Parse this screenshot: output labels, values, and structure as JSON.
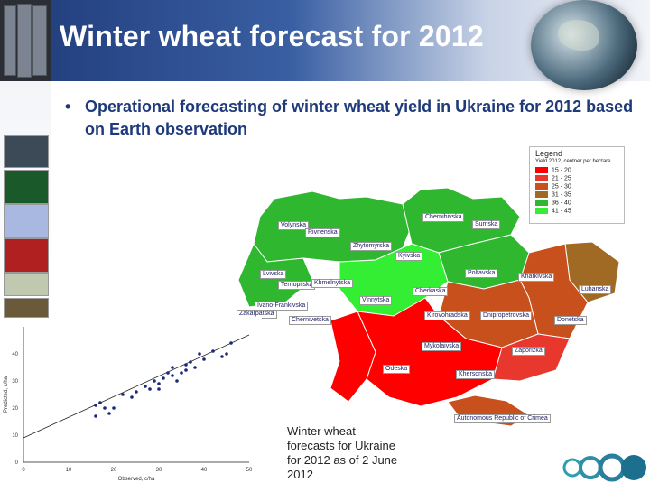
{
  "slide": {
    "title": "Winter wheat forecast for 2012",
    "bullet": "Operational forecasting of winter wheat yield in Ukraine for 2012 based on Earth observation",
    "caption": "Winter wheat forecasts for Ukraine for 2012 as of 2 June 2012"
  },
  "legend": {
    "title": "Legend",
    "subtitle": "Yield 2012, centner per hectare",
    "items": [
      {
        "label": "15 - 20",
        "color": "#ff0000"
      },
      {
        "label": "21 - 25",
        "color": "#e8372d"
      },
      {
        "label": "25 - 30",
        "color": "#c8501c"
      },
      {
        "label": "31 - 35",
        "color": "#a06a24"
      },
      {
        "label": "36 - 40",
        "color": "#2fb82f"
      },
      {
        "label": "41 - 45",
        "color": "#33ee33"
      }
    ]
  },
  "regions": [
    "Volynska",
    "Rivnenska",
    "Zhytomyrska",
    "Kyivska",
    "Chernihivska",
    "Sumska",
    "Lvivska",
    "Ternopilska",
    "Khmelnytska",
    "Poltavska",
    "Kharkivska",
    "Luhanska",
    "Ivano-Frankivska",
    "Zakarpatska",
    "Chernivetska",
    "Vinnytska",
    "Cherkaska",
    "Kirovohradska",
    "Dnipropetrovska",
    "Donetska",
    "Mykolaivska",
    "Zaporizka",
    "Odeska",
    "Khersonska",
    "Autonomous Republic of Crimea"
  ],
  "scatter": {
    "xlabel": "Observed, c/ha",
    "ylabel": "Predicted, c/ha",
    "xticks": [
      "0",
      "10",
      "20",
      "30",
      "40",
      "50"
    ],
    "yticks": [
      "0",
      "10",
      "20",
      "30",
      "40"
    ],
    "xlim": [
      0,
      50
    ],
    "ylim": [
      0,
      50
    ],
    "points": [
      [
        16,
        21
      ],
      [
        17,
        22
      ],
      [
        18,
        20
      ],
      [
        16,
        17
      ],
      [
        19,
        18
      ],
      [
        20,
        20
      ],
      [
        22,
        25
      ],
      [
        24,
        24
      ],
      [
        25,
        26
      ],
      [
        27,
        28
      ],
      [
        28,
        27
      ],
      [
        29,
        30
      ],
      [
        30,
        29
      ],
      [
        31,
        31
      ],
      [
        32,
        33
      ],
      [
        33,
        32
      ],
      [
        34,
        30
      ],
      [
        35,
        33
      ],
      [
        36,
        36
      ],
      [
        37,
        37
      ],
      [
        38,
        35
      ],
      [
        39,
        40
      ],
      [
        40,
        38
      ],
      [
        42,
        41
      ],
      [
        44,
        39
      ],
      [
        45,
        40
      ],
      [
        46,
        44
      ],
      [
        36,
        34
      ],
      [
        33,
        35
      ],
      [
        30,
        27
      ]
    ],
    "fit_line": [
      [
        0,
        9
      ],
      [
        50,
        47
      ]
    ]
  }
}
